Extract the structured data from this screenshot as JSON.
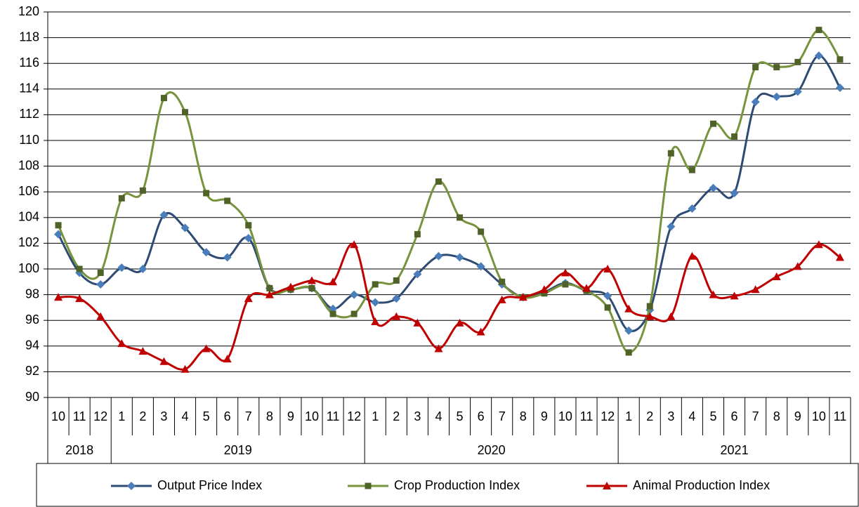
{
  "chart_data": {
    "type": "line",
    "category_groups": [
      {
        "label": "2018",
        "categories": [
          "10",
          "11",
          "12"
        ]
      },
      {
        "label": "2019",
        "categories": [
          "1",
          "2",
          "3",
          "4",
          "5",
          "6",
          "7",
          "8",
          "9",
          "10",
          "11",
          "12"
        ]
      },
      {
        "label": "2020",
        "categories": [
          "1",
          "2",
          "3",
          "4",
          "5",
          "6",
          "7",
          "8",
          "9",
          "10",
          "11",
          "12"
        ]
      },
      {
        "label": "2021",
        "categories": [
          "1",
          "2",
          "3",
          "4",
          "5",
          "6",
          "7",
          "8",
          "9",
          "10",
          "11"
        ]
      }
    ],
    "series": [
      {
        "name": "Output Price Index",
        "color": "#2e4b73",
        "marker": "diamond",
        "marker_color": "#4a7ebb",
        "values": [
          102.7,
          99.7,
          98.8,
          100.1,
          100.0,
          104.2,
          103.2,
          101.3,
          100.9,
          102.4,
          98.5,
          98.4,
          98.5,
          96.9,
          98.0,
          97.4,
          97.7,
          99.6,
          101.0,
          100.9,
          100.2,
          98.8,
          97.8,
          98.2,
          98.9,
          98.3,
          97.9,
          95.2,
          96.8,
          103.3,
          104.7,
          106.3,
          105.9,
          113.0,
          113.4,
          113.8,
          116.6,
          114.1
        ]
      },
      {
        "name": "Crop Production Index",
        "color": "#77933c",
        "marker": "square",
        "marker_color": "#4f6228",
        "values": [
          103.4,
          100.0,
          99.7,
          105.5,
          106.1,
          113.3,
          112.2,
          105.9,
          105.3,
          103.4,
          98.5,
          98.4,
          98.5,
          96.5,
          96.5,
          98.8,
          99.1,
          102.7,
          106.8,
          104.0,
          102.9,
          99.0,
          97.8,
          98.1,
          98.8,
          98.3,
          97.0,
          93.5,
          97.1,
          109.0,
          107.7,
          111.3,
          110.3,
          115.7,
          115.7,
          116.1,
          118.6,
          116.3
        ]
      },
      {
        "name": "Animal Production Index",
        "color": "#c00000",
        "marker": "triangle",
        "marker_color": "#c00000",
        "values": [
          97.8,
          97.7,
          96.3,
          94.2,
          93.6,
          92.8,
          92.2,
          93.8,
          93.0,
          97.7,
          98.0,
          98.6,
          99.1,
          99.0,
          101.9,
          95.9,
          96.3,
          95.8,
          93.8,
          95.8,
          95.1,
          97.6,
          97.8,
          98.4,
          99.7,
          98.5,
          100.0,
          96.9,
          96.3,
          96.3,
          101.0,
          98.0,
          97.9,
          98.4,
          99.4,
          100.2,
          101.9,
          100.9
        ]
      }
    ],
    "ylim": [
      90,
      120
    ],
    "yticks": [
      90,
      92,
      94,
      96,
      98,
      100,
      102,
      104,
      106,
      108,
      110,
      112,
      114,
      116,
      118,
      120
    ],
    "grid": true,
    "smooth": true,
    "legend": "bottom"
  }
}
